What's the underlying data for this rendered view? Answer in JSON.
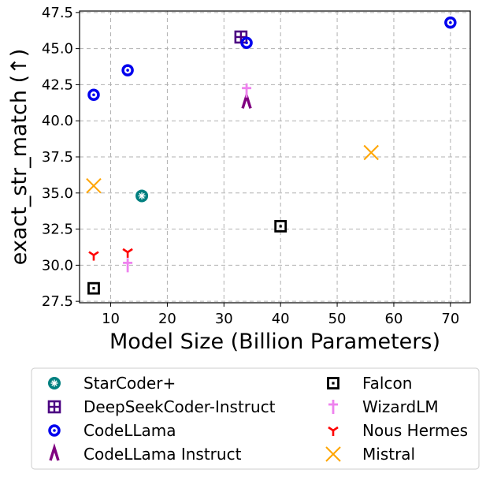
{
  "chart_data": {
    "type": "scatter",
    "title": "",
    "xlabel": "Model Size (Billion Parameters)",
    "ylabel": "exact_str_match (↑)",
    "xlim": [
      4.5,
      73.5
    ],
    "ylim": [
      27.4,
      47.6
    ],
    "x_ticks": [
      10,
      20,
      30,
      40,
      50,
      60,
      70
    ],
    "y_ticks": [
      27.5,
      30.0,
      32.5,
      35.0,
      37.5,
      40.0,
      42.5,
      45.0,
      47.5
    ],
    "x_tick_labels": [
      "10",
      "20",
      "30",
      "40",
      "50",
      "60",
      "70"
    ],
    "y_tick_labels": [
      "27.5",
      "30.0",
      "32.5",
      "35.0",
      "37.5",
      "40.0",
      "42.5",
      "45.0",
      "47.5"
    ],
    "grid": true,
    "legend_position": "below plot, two columns",
    "series": [
      {
        "name": "StarCoder+",
        "marker": "asterisk-circle",
        "color": "#008080",
        "points": [
          [
            15.5,
            34.8
          ]
        ]
      },
      {
        "name": "DeepSeekCoder-Instruct",
        "marker": "square-cross",
        "color": "#4b0082",
        "points": [
          [
            33,
            45.8
          ]
        ]
      },
      {
        "name": "CodeLLama",
        "marker": "circle-dot",
        "color": "#0000ee",
        "points": [
          [
            7,
            41.8
          ],
          [
            13,
            43.5
          ],
          [
            34,
            45.4
          ],
          [
            70,
            46.8
          ]
        ]
      },
      {
        "name": "CodeLLama Instruct",
        "marker": "wedge",
        "color": "#800080",
        "points": [
          [
            34,
            41.3
          ]
        ]
      },
      {
        "name": "Falcon",
        "marker": "square-dot",
        "color": "#000000",
        "points": [
          [
            7,
            28.4
          ],
          [
            40,
            32.7
          ]
        ]
      },
      {
        "name": "WizardLM",
        "marker": "dagger",
        "color": "#ee82ee",
        "points": [
          [
            13,
            30.0
          ],
          [
            34,
            42.1
          ]
        ]
      },
      {
        "name": "Nous Hermes",
        "marker": "tri-down",
        "color": "#ff0000",
        "points": [
          [
            7,
            30.7
          ],
          [
            13,
            30.9
          ]
        ]
      },
      {
        "name": "Mistral",
        "marker": "x",
        "color": "#ffa500",
        "points": [
          [
            7,
            35.5
          ],
          [
            56,
            37.8
          ]
        ]
      }
    ]
  }
}
